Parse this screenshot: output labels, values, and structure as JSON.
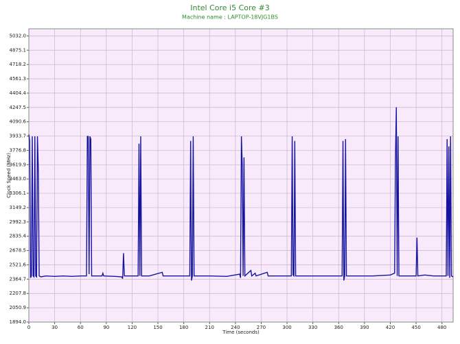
{
  "chart_data": {
    "type": "line",
    "title": "Intel Core i5 Core #3",
    "subtitle": "Machine name : LAPTOP-18VJG1BS",
    "x_label": "Time (seconds)",
    "y_label": "Clock Speed (MHz)",
    "color": "#1414a0",
    "grid": true,
    "xlim": [
      0,
      493
    ],
    "xticks": [
      0,
      30,
      60,
      90,
      120,
      150,
      180,
      210,
      240,
      270,
      300,
      330,
      360,
      390,
      420,
      450,
      480
    ],
    "ylim": [
      1894,
      5110
    ],
    "yticks": [
      {
        "value": 1894,
        "label": "1894.0"
      },
      2050.9,
      2207.8,
      2364.7,
      2521.6,
      2678.5,
      2835.4,
      2992.3,
      3149.2,
      3306.1,
      {
        "value": 3463,
        "label": "3463.0"
      },
      3619.9,
      3776.8,
      3933.7,
      4090.6,
      4247.5,
      4404.4,
      4561.3,
      4718.2,
      4875.1,
      {
        "value": 5032,
        "label": "5032.0"
      }
    ],
    "x": [
      0,
      1,
      2,
      3,
      4,
      5,
      6,
      7,
      8,
      9,
      10,
      11,
      12,
      14,
      20,
      30,
      40,
      50,
      60,
      67,
      68,
      69,
      70,
      71,
      72,
      73,
      85,
      86,
      87,
      100,
      108,
      109,
      110,
      111,
      120,
      127,
      128,
      129,
      130,
      131,
      140,
      155,
      156,
      170,
      187,
      188,
      189,
      190,
      191,
      192,
      210,
      230,
      245,
      246,
      247,
      248,
      249,
      250,
      251,
      258,
      259,
      263,
      264,
      277,
      278,
      300,
      305,
      306,
      307,
      308,
      309,
      310,
      340,
      364,
      365,
      366,
      367,
      368,
      369,
      400,
      420,
      425,
      426,
      427,
      428,
      429,
      430,
      450,
      451,
      452,
      460,
      470,
      485,
      486,
      487,
      488,
      489,
      490,
      491,
      493
    ],
    "values": [
      3950,
      3880,
      2380,
      2400,
      3930,
      2400,
      2390,
      3930,
      2400,
      2390,
      3930,
      3580,
      2400,
      2390,
      2400,
      2395,
      2400,
      2395,
      2400,
      2400,
      3930,
      3930,
      2420,
      3930,
      3900,
      2400,
      2400,
      2430,
      2400,
      2395,
      2390,
      2370,
      2650,
      2400,
      2400,
      2400,
      3850,
      2400,
      3930,
      2400,
      2400,
      2440,
      2400,
      2400,
      2400,
      3880,
      2350,
      2400,
      3930,
      2400,
      2400,
      2395,
      2420,
      2380,
      3930,
      3600,
      2400,
      3700,
      2400,
      2460,
      2400,
      2430,
      2400,
      2440,
      2400,
      2400,
      2400,
      3930,
      2410,
      2400,
      3880,
      2400,
      2400,
      2400,
      3880,
      2350,
      2400,
      3900,
      2400,
      2400,
      2410,
      2430,
      3700,
      4250,
      2400,
      3930,
      2400,
      2400,
      2820,
      2400,
      2410,
      2400,
      2400,
      3900,
      2400,
      3820,
      2380,
      3930,
      2400,
      2390
    ]
  }
}
